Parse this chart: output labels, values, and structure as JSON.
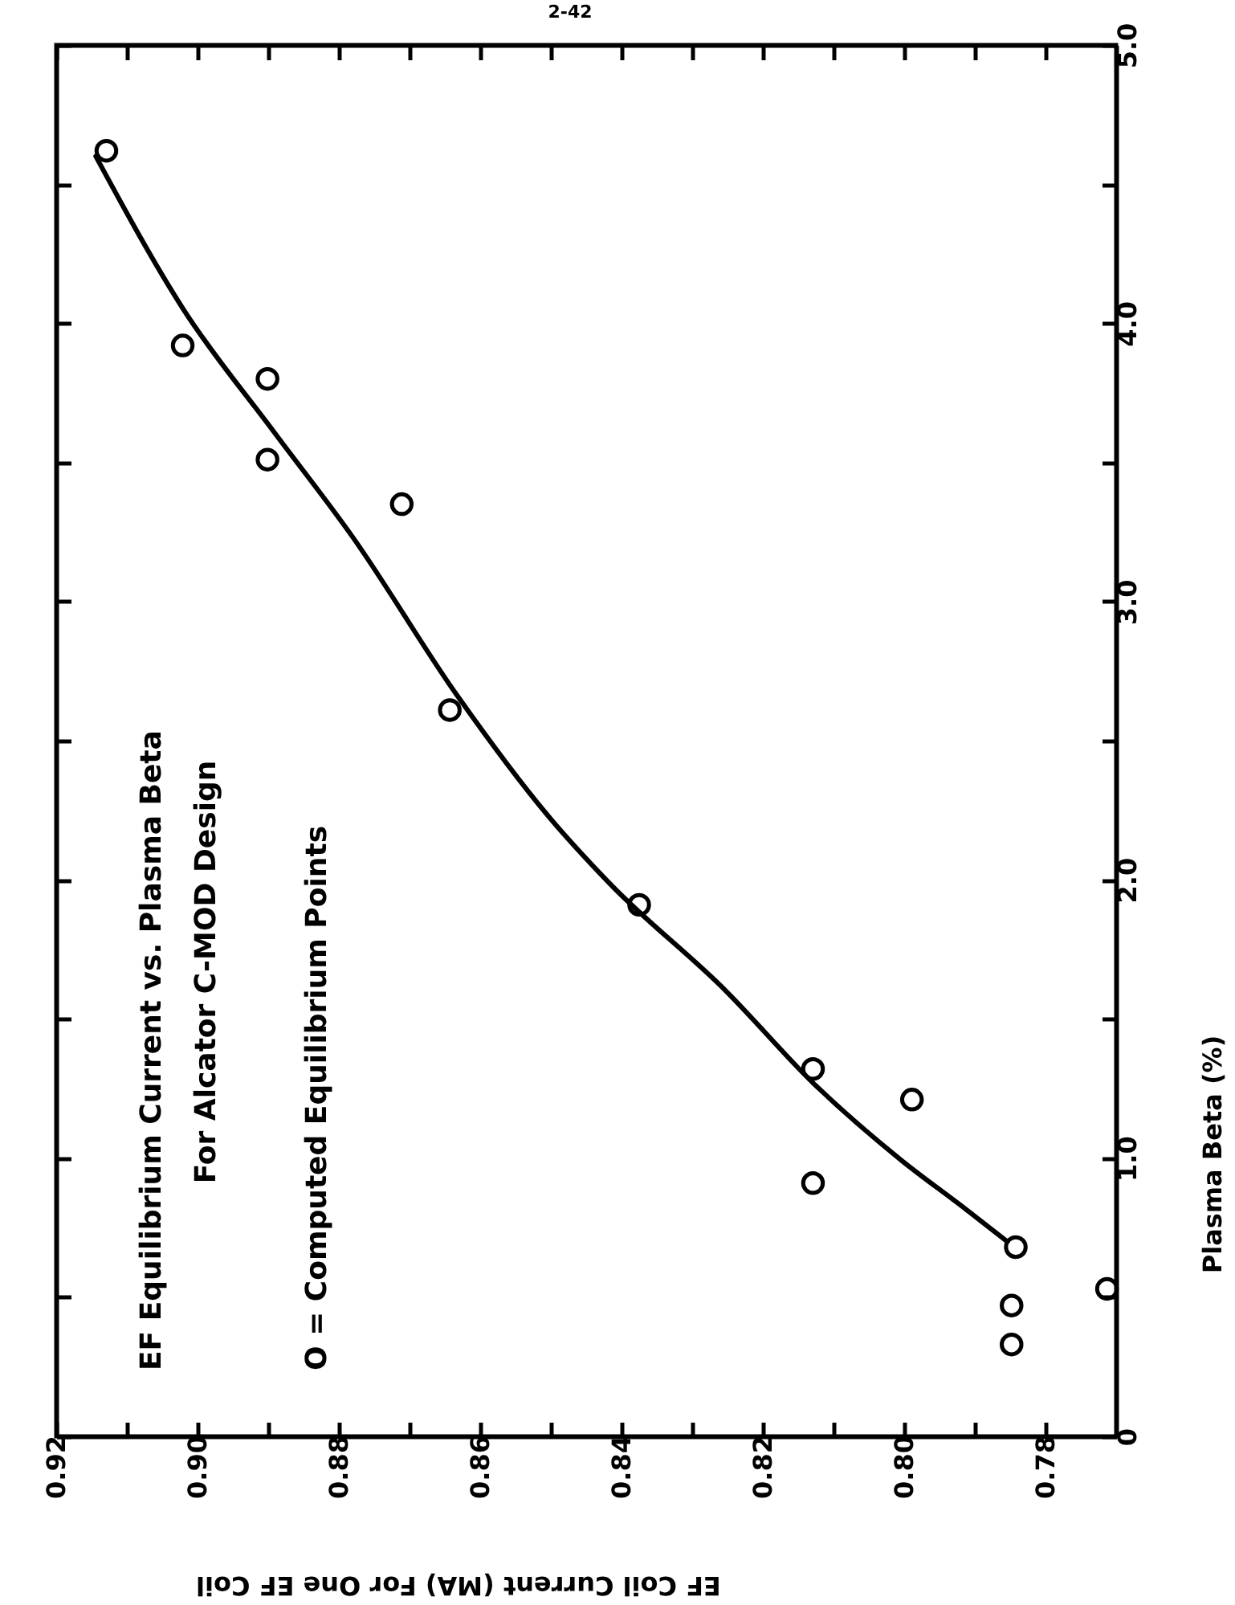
{
  "chart_data": {
    "type": "scatter",
    "title": "EF Equilibrium Current vs. Plasma Beta",
    "subtitle": "For Alcator C-MOD Design",
    "annotations": [
      "O = Computed Equilibrium Points",
      "2-42"
    ],
    "xlabel": "EF Coil Current (MA) For One EF Coil",
    "ylabel": "Plasma Beta (%)",
    "xlim": [
      0.92,
      0.77
    ],
    "xticks": [
      0.92,
      {
        "value": 0.91,
        "label": null
      },
      {
        "value": 0.9,
        "label": "0.90"
      },
      {
        "value": 0.89,
        "label": null
      },
      0.88,
      {
        "value": 0.87,
        "label": null
      },
      0.86,
      {
        "value": 0.85,
        "label": null
      },
      0.84,
      {
        "value": 0.83,
        "label": null
      },
      0.82,
      {
        "value": 0.81,
        "label": null
      },
      {
        "value": 0.8,
        "label": "0.80"
      },
      {
        "value": 0.79,
        "label": null
      },
      0.78
    ],
    "ylim": [
      0,
      5
    ],
    "yticks": [
      0,
      {
        "value": 0.5,
        "label": null
      },
      {
        "value": 1,
        "label": "1.0"
      },
      {
        "value": 1.5,
        "label": null
      },
      {
        "value": 2,
        "label": "2.0"
      },
      {
        "value": 2.5,
        "label": null
      },
      {
        "value": 3,
        "label": "3.0"
      },
      {
        "value": 3.5,
        "label": null
      },
      {
        "value": 4,
        "label": "4.0"
      },
      {
        "value": 4.5,
        "label": null
      },
      {
        "value": 5,
        "label": "5.0"
      }
    ],
    "grid": false,
    "series": [
      {
        "type": "line",
        "color": "#000000",
        "line_style": "solid",
        "x": [
          0.9144,
          0.902,
          0.8892,
          0.878,
          0.8632,
          0.8504,
          0.8418,
          0.8252,
          0.8129,
          0.8003,
          0.792,
          0.7854
        ],
        "values": [
          4.6,
          4.05,
          3.61,
          3.23,
          2.66,
          2.23,
          1.99,
          1.6,
          1.27,
          0.99,
          0.83,
          0.7
        ]
      },
      {
        "color": "#000000",
        "marker": "circle",
        "x": [
          0.9129,
          0.9021,
          0.8901,
          0.8901,
          0.8711,
          0.8643,
          0.8375,
          0.8129,
          0.8129,
          0.7989,
          0.7842,
          0.7713,
          0.7848,
          0.7848
        ],
        "values": [
          4.62,
          3.92,
          3.8,
          3.51,
          3.35,
          2.61,
          1.91,
          1.32,
          0.91,
          1.21,
          0.68,
          0.53,
          0.47,
          0.33
        ]
      }
    ]
  }
}
